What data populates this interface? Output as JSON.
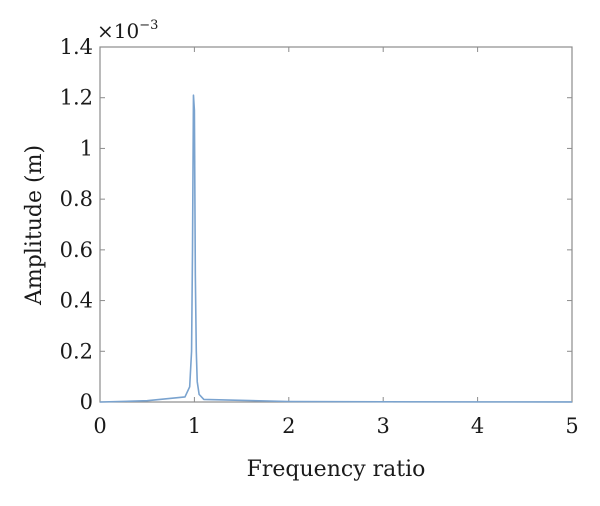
{
  "chart_data": {
    "type": "line",
    "xlabel": "Frequency ratio",
    "ylabel": "Amplitude (m)",
    "y_multiplier": {
      "base": "×10",
      "exponent": "−3"
    },
    "xlim": [
      0,
      5
    ],
    "ylim": [
      0,
      1.4
    ],
    "x_ticks": [
      0,
      1,
      2,
      3,
      4,
      5
    ],
    "x_tick_labels": [
      "0",
      "1",
      "2",
      "3",
      "4",
      "5"
    ],
    "y_ticks": [
      0,
      0.2,
      0.4,
      0.6,
      0.8,
      1.0,
      1.2,
      1.4
    ],
    "y_tick_labels": [
      "0",
      "0.2",
      "0.4",
      "0.6",
      "0.8",
      "1",
      "1.2",
      "1.4"
    ],
    "grid": false,
    "series": [
      {
        "color": "#7aa3cf",
        "x": [
          0,
          0.5,
          0.9,
          0.95,
          0.97,
          0.98,
          0.99,
          1.0,
          1.01,
          1.02,
          1.03,
          1.05,
          1.1,
          2,
          3,
          4,
          5
        ],
        "y": [
          0,
          0.005,
          0.02,
          0.06,
          0.2,
          0.6,
          1.21,
          1.15,
          0.5,
          0.2,
          0.08,
          0.03,
          0.01,
          0.002,
          0.001,
          0.0005,
          0.0003
        ]
      }
    ]
  }
}
